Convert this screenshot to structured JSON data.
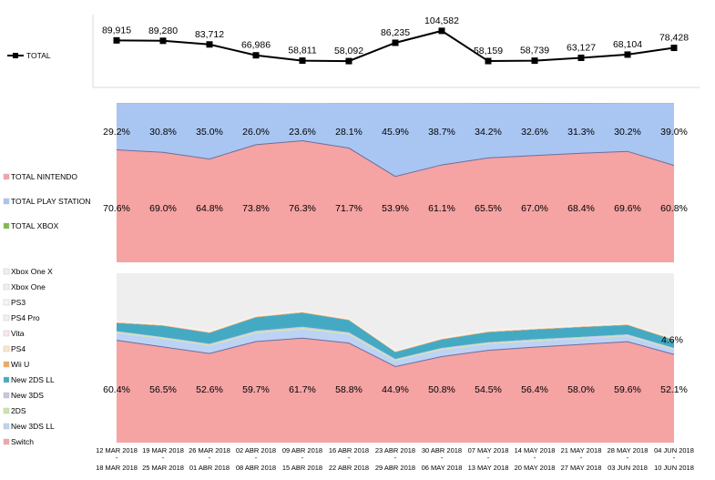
{
  "chart_data": [
    {
      "type": "line",
      "categories": [
        "12 MAR 2018 - 18 MAR 2018",
        "19 MAR 2018 - 25 MAR 2018",
        "26 MAR 2018 - 01 ABR 2018",
        "02 ABR 2018 - 08 ABR 2018",
        "09 ABR 2018 - 15 ABR 2018",
        "16 ABR 2018 - 22 ABR 2018",
        "23 ABR 2018 - 29 ABR 2018",
        "30 ABR 2018 - 06 MAY 2018",
        "07 MAY 2018 - 13 MAY 2018",
        "14 MAY 2018 - 20 MAY 2018",
        "21 MAY 2018 - 27 MAY 2018",
        "28 MAY 2018 - 03 JUN 2018",
        "04 JUN 2018 - 10 JUN 2018"
      ],
      "series": [
        {
          "name": "TOTAL",
          "values": [
            89915,
            89280,
            83712,
            66986,
            58811,
            58092,
            86235,
            104582,
            58159,
            58739,
            63127,
            68104,
            78428
          ],
          "labels": [
            "89,915",
            "89,280",
            "83,712",
            "66,986",
            "58,811",
            "58,092",
            "86,235",
            "104,582",
            "58,159",
            "58,739",
            "63,127",
            "68,104",
            "78,428"
          ]
        }
      ],
      "legend_position": "left"
    },
    {
      "type": "area",
      "stacked_percent": true,
      "series": [
        {
          "name": "TOTAL NINTENDO",
          "color": "#f5a3a3",
          "values": [
            70.6,
            69.0,
            64.8,
            73.8,
            76.3,
            71.7,
            53.9,
            61.1,
            65.5,
            67.0,
            68.4,
            69.6,
            60.8
          ],
          "labels": [
            "70.6%",
            "69.0%",
            "64.8%",
            "73.8%",
            "76.3%",
            "71.7%",
            "53.9%",
            "61.1%",
            "65.5%",
            "67.0%",
            "68.4%",
            "69.6%",
            "60.8%"
          ]
        },
        {
          "name": "TOTAL PLAY STATION",
          "color": "#a9c6f2",
          "values": [
            29.2,
            30.8,
            35.0,
            26.0,
            23.6,
            28.1,
            45.9,
            38.7,
            34.2,
            32.6,
            31.3,
            30.2,
            39.0
          ],
          "labels": [
            "29.2%",
            "30.8%",
            "35.0%",
            "26.0%",
            "23.6%",
            "28.1%",
            "45.9%",
            "38.7%",
            "34.2%",
            "32.6%",
            "31.3%",
            "30.2%",
            "39.0%"
          ]
        },
        {
          "name": "TOTAL XBOX",
          "color": "#7fba4c",
          "values": [
            0.2,
            0.2,
            0.2,
            0.2,
            0.1,
            0.2,
            0.2,
            0.2,
            0.3,
            0.4,
            0.3,
            0.2,
            0.2
          ]
        }
      ],
      "legend_position": "left"
    },
    {
      "type": "area",
      "stacked_percent": true,
      "series": [
        {
          "name": "Switch",
          "color": "#f5a3a3",
          "values": [
            60.4,
            56.5,
            52.6,
            59.7,
            61.7,
            58.8,
            44.9,
            50.8,
            54.5,
            56.4,
            58.0,
            59.6,
            52.1
          ],
          "labels": [
            "60.4%",
            "56.5%",
            "52.6%",
            "59.7%",
            "61.7%",
            "58.8%",
            "44.9%",
            "50.8%",
            "54.5%",
            "56.4%",
            "58.0%",
            "59.6%",
            "52.1%"
          ]
        },
        {
          "name": "New 3DS LL",
          "color": "#bcd3f5",
          "values": [
            4.3,
            4.7,
            4.6,
            5.0,
            5.2,
            5.0,
            3.5,
            4.0,
            3.7,
            3.5,
            3.4,
            3.3,
            2.8
          ]
        },
        {
          "name": "2DS",
          "color": "#cfe4a8",
          "values": [
            0.6,
            0.6,
            0.6,
            0.7,
            0.8,
            0.7,
            0.6,
            0.6,
            0.6,
            0.6,
            0.5,
            0.5,
            0.5
          ]
        },
        {
          "name": "New 3DS",
          "color": "#c9c4e6",
          "values": [
            0.5,
            0.5,
            0.5,
            0.6,
            0.7,
            0.6,
            0.4,
            0.5,
            0.5,
            0.5,
            0.5,
            0.5,
            0.5
          ]
        },
        {
          "name": "New 2DS LL",
          "color": "#44aac4",
          "values": [
            4.8,
            6.7,
            6.5,
            8.0,
            8.3,
            7.2,
            4.0,
            5.0,
            5.9,
            5.8,
            5.8,
            5.5,
            4.6
          ],
          "labels": [
            "",
            "",
            "",
            "",
            "",
            "",
            "",
            "",
            "",
            "",
            "",
            "",
            "4.6%"
          ]
        },
        {
          "name": "Wii U",
          "color": "#f5a65b",
          "values": [
            0.4,
            0.3,
            0.3,
            0.3,
            0.3,
            0.3,
            0.3,
            0.3,
            0.3,
            0.3,
            0.3,
            0.3,
            0.3
          ]
        },
        {
          "name": "PS4",
          "color": "#fde4c8",
          "values": [
            0.3,
            0.3,
            0.3,
            0.3,
            0.3,
            0.3,
            0.3,
            0.3,
            0.3,
            0.3,
            0.3,
            0.3,
            0.3
          ]
        },
        {
          "name": "Vita",
          "color": "#fbe6e6",
          "values": [
            0.2,
            0.2,
            0.2,
            0.2,
            0.2,
            0.2,
            0.2,
            0.2,
            0.2,
            0.2,
            0.2,
            0.2,
            0.2
          ]
        },
        {
          "name": "PS4 Pro",
          "color": "#f4f0e9",
          "values": [
            0.2,
            0.2,
            0.2,
            0.2,
            0.2,
            0.2,
            0.2,
            0.2,
            0.2,
            0.2,
            0.2,
            0.2,
            0.2
          ]
        },
        {
          "name": "PS3",
          "color": "#f5f5f5",
          "values": [
            0.1,
            0.1,
            0.1,
            0.1,
            0.1,
            0.1,
            0.1,
            0.1,
            0.1,
            0.1,
            0.1,
            0.1,
            0.1
          ]
        },
        {
          "name": "Xbox One",
          "color": "#f3eee8",
          "values": [
            0.1,
            0.1,
            0.1,
            0.1,
            0.1,
            0.1,
            0.1,
            0.1,
            0.1,
            0.1,
            0.1,
            0.1,
            0.1
          ]
        },
        {
          "name": "Xbox One X",
          "color": "#eeeeee",
          "values": [
            28.1,
            29.8,
            34.1,
            24.8,
            22.3,
            26.5,
            45.0,
            37.9,
            33.9,
            32.0,
            30.6,
            29.3,
            38.3
          ]
        }
      ],
      "legend_position": "left"
    }
  ]
}
